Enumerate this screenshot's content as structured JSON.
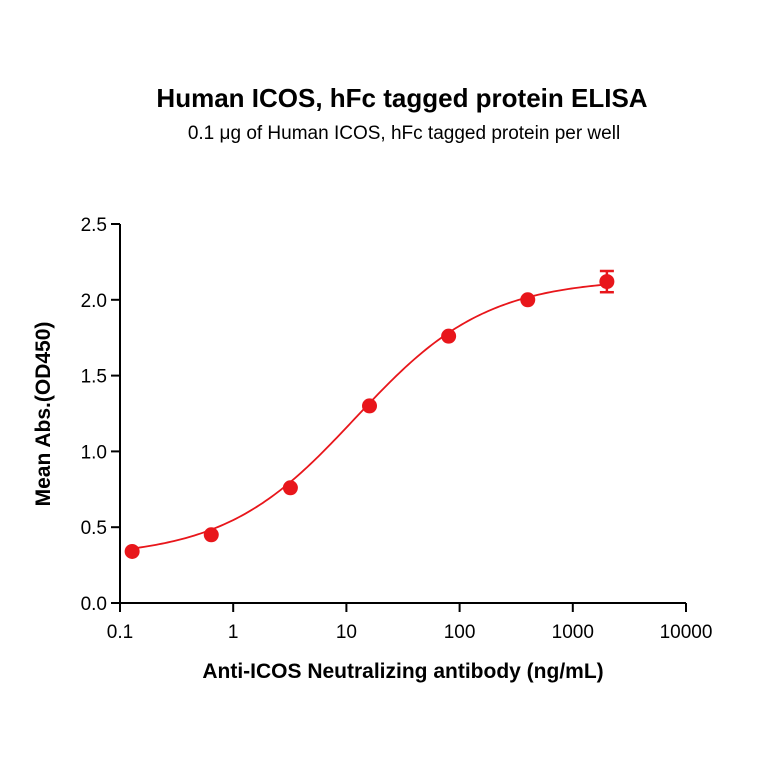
{
  "chart_data": {
    "type": "scatter",
    "title": "Human ICOS, hFc tagged protein ELISA",
    "subtitle": "0.1 μg of Human ICOS, hFc tagged protein per well",
    "xlabel": "Anti-ICOS Neutralizing antibody (ng/mL)",
    "ylabel": "Mean Abs.(OD450)",
    "x_scale": "log",
    "xlim": [
      0.1,
      10000
    ],
    "ylim": [
      0,
      2.5
    ],
    "x_ticks": [
      0.1,
      1,
      10,
      100,
      1000,
      10000
    ],
    "x_tick_labels": [
      "0.1",
      "1",
      "10",
      "100",
      "1000",
      "10000"
    ],
    "y_ticks": [
      0,
      0.5,
      1,
      1.5,
      2,
      2.5
    ],
    "y_tick_labels": [
      "0.0",
      "0.5",
      "1.0",
      "1.5",
      "2.0",
      "2.5"
    ],
    "grid": false,
    "legend": "none",
    "series": [
      {
        "color": "#e8161b",
        "x": [
          0.128,
          0.64,
          3.2,
          16,
          80,
          400,
          2000
        ],
        "y": [
          0.34,
          0.45,
          0.76,
          1.3,
          1.76,
          2.0,
          2.12
        ],
        "error": [
          0.0,
          0.0,
          0.0,
          0.0,
          0.0,
          0.0,
          0.07
        ]
      }
    ],
    "fit": {
      "model": "4PL",
      "bottom": 0.3,
      "top": 2.14,
      "ec50": 12.0,
      "hill": 0.75,
      "color": "#e8161b"
    }
  }
}
